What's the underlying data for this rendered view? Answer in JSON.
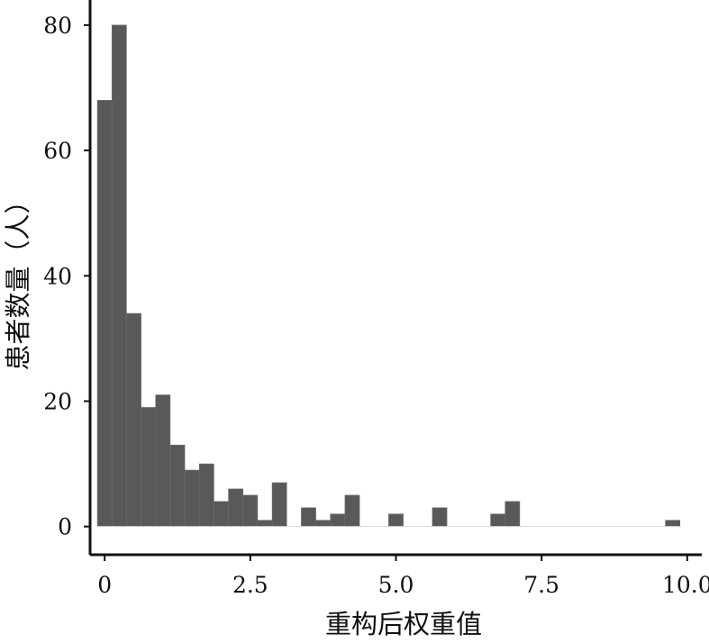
{
  "chart_data": {
    "type": "bar",
    "title": "",
    "xlabel": "重构后权重值",
    "ylabel": "患者数量（人）",
    "xlim": [
      -0.25,
      10.25
    ],
    "ylim": [
      -4.5,
      84
    ],
    "bin_width": 0.25,
    "bins": [
      {
        "x0": -0.125,
        "x1": 0.125,
        "count": 68
      },
      {
        "x0": 0.125,
        "x1": 0.375,
        "count": 80
      },
      {
        "x0": 0.375,
        "x1": 0.625,
        "count": 34
      },
      {
        "x0": 0.625,
        "x1": 0.875,
        "count": 19
      },
      {
        "x0": 0.875,
        "x1": 1.125,
        "count": 21
      },
      {
        "x0": 1.125,
        "x1": 1.375,
        "count": 13
      },
      {
        "x0": 1.375,
        "x1": 1.625,
        "count": 9
      },
      {
        "x0": 1.625,
        "x1": 1.875,
        "count": 10
      },
      {
        "x0": 1.875,
        "x1": 2.125,
        "count": 4
      },
      {
        "x0": 2.125,
        "x1": 2.375,
        "count": 6
      },
      {
        "x0": 2.375,
        "x1": 2.625,
        "count": 5
      },
      {
        "x0": 2.625,
        "x1": 2.875,
        "count": 1
      },
      {
        "x0": 2.875,
        "x1": 3.125,
        "count": 7
      },
      {
        "x0": 3.125,
        "x1": 3.375,
        "count": 0
      },
      {
        "x0": 3.375,
        "x1": 3.625,
        "count": 3
      },
      {
        "x0": 3.625,
        "x1": 3.875,
        "count": 1
      },
      {
        "x0": 3.875,
        "x1": 4.125,
        "count": 2
      },
      {
        "x0": 4.125,
        "x1": 4.375,
        "count": 5
      },
      {
        "x0": 4.375,
        "x1": 4.625,
        "count": 0
      },
      {
        "x0": 4.625,
        "x1": 4.875,
        "count": 0
      },
      {
        "x0": 4.875,
        "x1": 5.125,
        "count": 2
      },
      {
        "x0": 5.125,
        "x1": 5.375,
        "count": 0
      },
      {
        "x0": 5.375,
        "x1": 5.625,
        "count": 0
      },
      {
        "x0": 5.625,
        "x1": 5.875,
        "count": 3
      },
      {
        "x0": 5.875,
        "x1": 6.125,
        "count": 0
      },
      {
        "x0": 6.125,
        "x1": 6.375,
        "count": 0
      },
      {
        "x0": 6.375,
        "x1": 6.625,
        "count": 0
      },
      {
        "x0": 6.625,
        "x1": 6.875,
        "count": 2
      },
      {
        "x0": 6.875,
        "x1": 7.125,
        "count": 4
      },
      {
        "x0": 7.125,
        "x1": 7.375,
        "count": 0
      },
      {
        "x0": 7.375,
        "x1": 7.625,
        "count": 0
      },
      {
        "x0": 7.625,
        "x1": 7.875,
        "count": 0
      },
      {
        "x0": 7.875,
        "x1": 8.125,
        "count": 0
      },
      {
        "x0": 8.125,
        "x1": 8.375,
        "count": 0
      },
      {
        "x0": 8.375,
        "x1": 8.625,
        "count": 0
      },
      {
        "x0": 8.625,
        "x1": 8.875,
        "count": 0
      },
      {
        "x0": 8.875,
        "x1": 9.125,
        "count": 0
      },
      {
        "x0": 9.125,
        "x1": 9.375,
        "count": 0
      },
      {
        "x0": 9.375,
        "x1": 9.625,
        "count": 0
      },
      {
        "x0": 9.625,
        "x1": 9.875,
        "count": 1
      }
    ],
    "x_ticks": [
      0,
      2.5,
      5.0,
      7.5,
      10.0
    ],
    "x_tick_labels": [
      "0",
      "2.5",
      "5.0",
      "7.5",
      "10.0"
    ],
    "y_ticks": [
      0,
      20,
      40,
      60,
      80
    ],
    "y_tick_labels": [
      "0",
      "20",
      "40",
      "60",
      "80"
    ],
    "bar_color": "#595959",
    "baseline_color": "#d9d9d9",
    "axis_color": "#111111",
    "grid": false,
    "legend": "none"
  }
}
